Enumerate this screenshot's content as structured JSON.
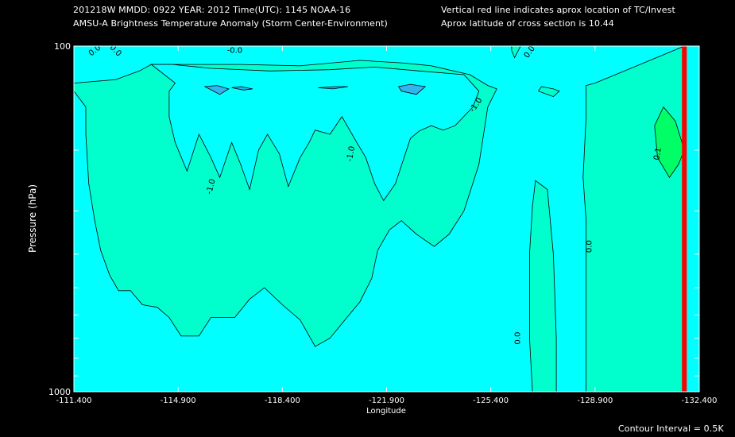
{
  "header": {
    "line1": "201218W  MMDD: 0922 YEAR: 2012 Time(UTC): 1145 NOAA-16",
    "line2": "AMSU-A Brightness Temperature Anomaly (Storm Center-Environment)",
    "note1": "Vertical red line indicates aprox location of TC/Invest",
    "note2": "Aprox latitude of cross section is 10.44"
  },
  "footer": {
    "contour_interval": "Contour Interval = 0.5K"
  },
  "colors": {
    "background": "#000000",
    "anom_neg1": "#34b4ee",
    "anom_neg05": "#00ffff",
    "anom_0": "#00ffcc",
    "anom_05": "#00ff99",
    "anom_1": "#00ff66",
    "storm_line": "#ff0000",
    "contour_line": "#000000"
  },
  "chart_data": {
    "type": "contour",
    "title": "AMSU-A Brightness Temperature Anomaly (Storm Center-Environment)",
    "xlabel": "Longitude",
    "ylabel": "Pressure (hPa)",
    "xlim": [
      -111.4,
      -132.4
    ],
    "ylim": [
      1000,
      100
    ],
    "yscale": "log",
    "x_ticks": [
      -111.4,
      -114.9,
      -118.4,
      -121.9,
      -125.4,
      -128.9,
      -132.4
    ],
    "x_tick_labels": [
      "-111.400",
      "-114.900",
      "-118.400",
      "-121.900",
      "-125.400",
      "-128.900",
      "-132.400"
    ],
    "y_ticks": [
      100,
      200,
      300,
      400,
      500,
      600,
      700,
      800,
      900,
      1000
    ],
    "y_tick_labels": [
      "100",
      "1000"
    ],
    "contour_interval_K": 0.5,
    "storm_longitude": -131.9,
    "regions": [
      {
        "anomaly": 0.0,
        "color": "#00ffcc",
        "points": [
          [
            -111.4,
            128
          ],
          [
            -112.8,
            125
          ],
          [
            -113.6,
            118
          ],
          [
            -114.0,
            113
          ],
          [
            -115.0,
            113
          ],
          [
            -117.0,
            113
          ],
          [
            -119.0,
            114
          ],
          [
            -121.0,
            110
          ],
          [
            -122.5,
            112
          ],
          [
            -123.4,
            114
          ],
          [
            -124.7,
            121
          ],
          [
            -125.3,
            130
          ],
          [
            -125.6,
            133
          ],
          [
            -125.3,
            150
          ],
          [
            -125.0,
            220
          ],
          [
            -124.5,
            300
          ],
          [
            -124.0,
            350
          ],
          [
            -123.5,
            380
          ],
          [
            -122.9,
            350
          ],
          [
            -122.4,
            320
          ],
          [
            -122.0,
            340
          ],
          [
            -121.6,
            390
          ],
          [
            -121.4,
            470
          ],
          [
            -121.0,
            550
          ],
          [
            -120.5,
            620
          ],
          [
            -120.0,
            700
          ],
          [
            -119.5,
            740
          ],
          [
            -119.0,
            620
          ],
          [
            -118.4,
            560
          ],
          [
            -117.8,
            500
          ],
          [
            -117.3,
            540
          ],
          [
            -116.8,
            610
          ],
          [
            -116.0,
            610
          ],
          [
            -115.6,
            690
          ],
          [
            -115.0,
            690
          ],
          [
            -114.6,
            610
          ],
          [
            -114.2,
            570
          ],
          [
            -113.7,
            560
          ],
          [
            -113.3,
            510
          ],
          [
            -112.9,
            510
          ],
          [
            -112.6,
            460
          ],
          [
            -112.3,
            390
          ],
          [
            -112.1,
            320
          ],
          [
            -111.9,
            250
          ],
          [
            -111.8,
            180
          ],
          [
            -111.8,
            150
          ],
          [
            -111.4,
            135
          ]
        ]
      },
      {
        "anomaly": 0.0,
        "color": "#00ffcc",
        "points": [
          [
            -126.1,
            100
          ],
          [
            -126.4,
            100
          ],
          [
            -126.2,
            108
          ],
          [
            -126.1,
            103
          ]
        ]
      },
      {
        "anomaly": 0.0,
        "color": "#00ffcc",
        "points": [
          [
            -126.9,
            245
          ],
          [
            -127.3,
            260
          ],
          [
            -127.5,
            400
          ],
          [
            -127.6,
            700
          ],
          [
            -127.6,
            1000
          ],
          [
            -126.8,
            1000
          ],
          [
            -126.7,
            700
          ],
          [
            -126.7,
            400
          ],
          [
            -126.8,
            290
          ]
        ]
      },
      {
        "anomaly": 0.0,
        "color": "#00ffcc",
        "points": [
          [
            -128.6,
            130
          ],
          [
            -128.9,
            128
          ],
          [
            -131.9,
            100
          ],
          [
            -131.9,
            1000
          ],
          [
            -128.6,
            1000
          ],
          [
            -128.6,
            600
          ],
          [
            -128.6,
            320
          ],
          [
            -128.5,
            240
          ],
          [
            -128.6,
            160
          ]
        ]
      },
      {
        "anomaly": 0.0,
        "color": "#00ffcc",
        "points": [
          [
            -127.1,
            131
          ],
          [
            -127.5,
            133
          ],
          [
            -127.7,
            135
          ],
          [
            -127.5,
            140
          ],
          [
            -127.2,
            137
          ],
          [
            -127.0,
            135
          ]
        ]
      },
      {
        "anomaly": 1.0,
        "color": "#00ff66",
        "points": [
          [
            -131.2,
            150
          ],
          [
            -131.6,
            165
          ],
          [
            -131.9,
            200
          ],
          [
            -131.7,
            220
          ],
          [
            -131.4,
            240
          ],
          [
            -131.0,
            210
          ],
          [
            -130.9,
            170
          ]
        ]
      },
      {
        "anomaly": -0.5,
        "color": "#00ffff",
        "points": [
          [
            -114.0,
            113
          ],
          [
            -114.7,
            113
          ],
          [
            -116.0,
            116
          ],
          [
            -118.0,
            118
          ],
          [
            -120.0,
            117
          ],
          [
            -121.5,
            115
          ],
          [
            -123.0,
            118
          ],
          [
            -124.5,
            121
          ],
          [
            -125.0,
            135
          ],
          [
            -124.8,
            150
          ],
          [
            -124.2,
            170
          ],
          [
            -123.8,
            175
          ],
          [
            -123.4,
            170
          ],
          [
            -123.0,
            176
          ],
          [
            -122.7,
            185
          ],
          [
            -122.2,
            250
          ],
          [
            -121.8,
            280
          ],
          [
            -121.5,
            250
          ],
          [
            -121.2,
            210
          ],
          [
            -120.9,
            190
          ],
          [
            -120.4,
            160
          ],
          [
            -120.0,
            180
          ],
          [
            -119.5,
            175
          ],
          [
            -119.3,
            190
          ],
          [
            -119.0,
            210
          ],
          [
            -118.6,
            255
          ],
          [
            -118.3,
            205
          ],
          [
            -117.9,
            180
          ],
          [
            -117.6,
            200
          ],
          [
            -117.3,
            260
          ],
          [
            -117.0,
            220
          ],
          [
            -116.7,
            190
          ],
          [
            -116.3,
            240
          ],
          [
            -116.0,
            210
          ],
          [
            -115.6,
            180
          ],
          [
            -115.2,
            230
          ],
          [
            -114.8,
            190
          ],
          [
            -114.6,
            160
          ],
          [
            -114.6,
            135
          ],
          [
            -114.8,
            128
          ]
        ]
      },
      {
        "anomaly": -1.0,
        "color": "#34b4ee",
        "points": [
          [
            -115.8,
            131
          ],
          [
            -116.2,
            130
          ],
          [
            -116.6,
            133
          ],
          [
            -116.3,
            138
          ]
        ]
      },
      {
        "anomaly": -1.0,
        "color": "#34b4ee",
        "points": [
          [
            -116.7,
            132
          ],
          [
            -117.0,
            131
          ],
          [
            -117.4,
            133
          ],
          [
            -117.1,
            134
          ]
        ]
      },
      {
        "anomaly": -1.0,
        "color": "#34b4ee",
        "points": [
          [
            -119.6,
            132
          ],
          [
            -120.2,
            131
          ],
          [
            -120.6,
            131
          ],
          [
            -120.1,
            133
          ]
        ]
      },
      {
        "anomaly": -1.0,
        "color": "#34b4ee",
        "points": [
          [
            -122.3,
            131
          ],
          [
            -122.7,
            129
          ],
          [
            -123.2,
            131
          ],
          [
            -122.9,
            138
          ],
          [
            -122.4,
            135
          ]
        ]
      }
    ],
    "contour_labels": [
      {
        "text": "0.0",
        "x": -112.1,
        "p": 103,
        "angle": -38
      },
      {
        "text": "0.0",
        "x": -112.8,
        "p": 103,
        "angle": 45
      },
      {
        "text": "-0.0",
        "x": -116.8,
        "p": 103,
        "angle": 0
      },
      {
        "text": "0.0",
        "x": -126.7,
        "p": 104,
        "angle": -55
      },
      {
        "text": "-1.0",
        "x": -124.9,
        "p": 148,
        "angle": -55
      },
      {
        "text": "-1.0",
        "x": -120.7,
        "p": 205,
        "angle": -80
      },
      {
        "text": "-1.0",
        "x": -116.0,
        "p": 255,
        "angle": -75
      },
      {
        "text": "0.0",
        "x": -126.3,
        "p": 700,
        "angle": -90
      },
      {
        "text": "0.0",
        "x": -128.7,
        "p": 380,
        "angle": -90
      },
      {
        "text": "0.1",
        "x": -131.0,
        "p": 205,
        "angle": -80
      }
    ]
  }
}
